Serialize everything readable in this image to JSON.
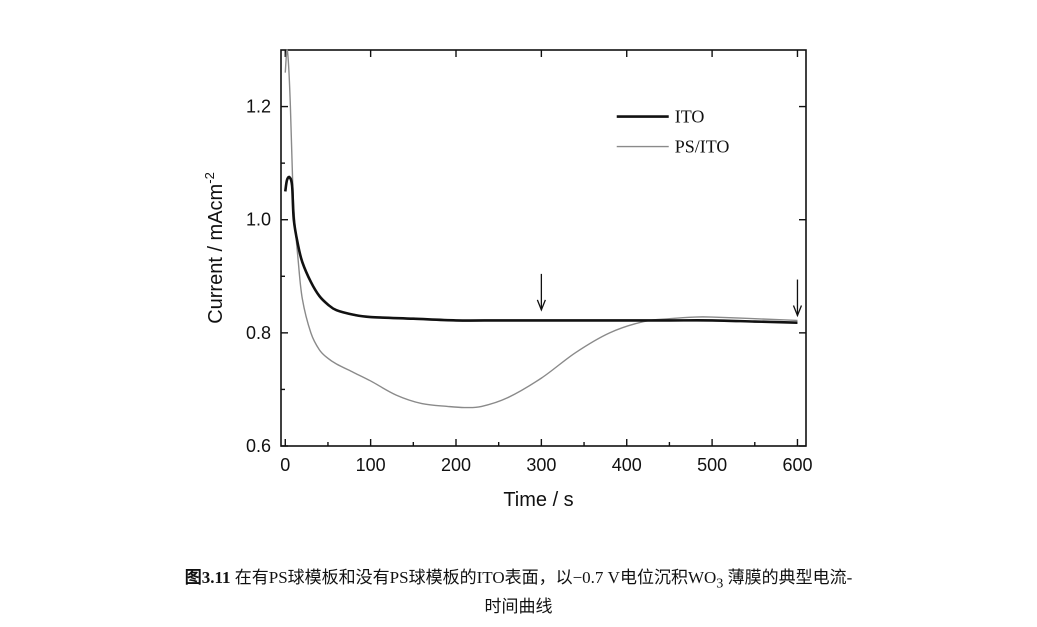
{
  "chart_data": {
    "type": "line",
    "xlabel": "Time / s",
    "ylabel": "Current / mAcm",
    "ylabel_sup": "-2",
    "xlim": [
      -5,
      610
    ],
    "ylim": [
      0.6,
      1.3
    ],
    "x_ticks": [
      0,
      100,
      200,
      300,
      400,
      500,
      600
    ],
    "y_ticks": [
      0.6,
      0.8,
      1.0,
      1.2
    ],
    "x_tick_labels": [
      "0",
      "100",
      "200",
      "300",
      "400",
      "500",
      "600"
    ],
    "y_tick_labels": [
      "0.6",
      "0.8",
      "1.0",
      "1.2"
    ],
    "legend_position": "top-right",
    "series": [
      {
        "name": "ITO",
        "color": "#111111",
        "width": "thick",
        "x": [
          0,
          2,
          5,
          8,
          10,
          15,
          20,
          30,
          40,
          50,
          60,
          80,
          100,
          150,
          200,
          250,
          300,
          350,
          400,
          450,
          500,
          550,
          600
        ],
        "y": [
          1.05,
          1.07,
          1.075,
          1.06,
          1.0,
          0.955,
          0.925,
          0.89,
          0.865,
          0.85,
          0.84,
          0.832,
          0.828,
          0.825,
          0.822,
          0.822,
          0.822,
          0.822,
          0.822,
          0.822,
          0.822,
          0.82,
          0.818
        ]
      },
      {
        "name": "PS/ITO",
        "color": "#8a8a8a",
        "width": "thin",
        "x": [
          0,
          2,
          4,
          6,
          8,
          10,
          15,
          20,
          30,
          40,
          50,
          60,
          80,
          100,
          130,
          160,
          190,
          210,
          230,
          260,
          300,
          340,
          380,
          420,
          450,
          480,
          500,
          550,
          600
        ],
        "y": [
          1.26,
          1.3,
          1.27,
          1.2,
          1.1,
          1.02,
          0.93,
          0.86,
          0.8,
          0.77,
          0.755,
          0.745,
          0.73,
          0.715,
          0.69,
          0.675,
          0.67,
          0.668,
          0.67,
          0.685,
          0.72,
          0.765,
          0.8,
          0.82,
          0.825,
          0.828,
          0.828,
          0.825,
          0.822
        ]
      }
    ],
    "annotations": [
      {
        "type": "arrow-down",
        "x": 300,
        "y": 0.83
      },
      {
        "type": "arrow-down",
        "x": 600,
        "y": 0.82
      }
    ]
  },
  "caption": {
    "label": "图3.11",
    "line1_text": " 在有PS球模板和没有PS球模板的ITO表面，以−0.7 V电位沉积WO",
    "line1_sub": "3",
    "line1_tail": " 薄膜的典型电流-",
    "line2_text": "时间曲线"
  }
}
